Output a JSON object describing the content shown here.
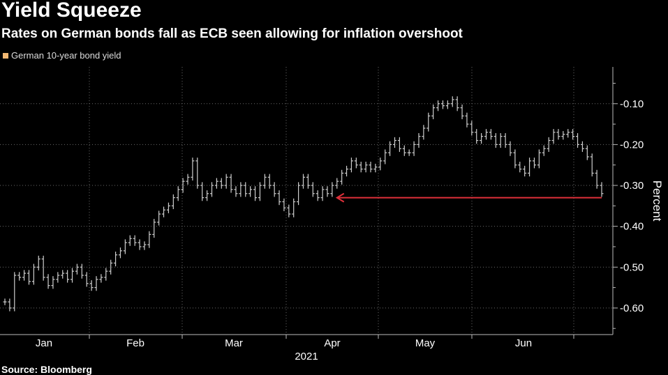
{
  "title": "Yield Squeeze",
  "subtitle": "Rates on German bonds fall as ECB seen allowing for inflation overshoot",
  "source": "Source: Bloomberg",
  "colors": {
    "background": "#000000",
    "bars": "#cfcfcf",
    "legend_swatch": "#f2b872",
    "arrow": "#e0303a",
    "grid": "#6a6a6a"
  },
  "chart_data": {
    "type": "bar",
    "subtype": "ohlc",
    "title": "Yield Squeeze",
    "subtitle": "Rates on German bonds fall as ECB seen allowing for inflation overshoot",
    "ylabel": "Percent",
    "xlabel": "2021",
    "y_axis_side": "right",
    "ylim": [
      -0.665,
      -0.01
    ],
    "yticks": [
      -0.1,
      -0.2,
      -0.3,
      -0.4,
      -0.5,
      -0.6
    ],
    "ytick_labels": [
      "-0.10",
      "-0.20",
      "-0.30",
      "-0.40",
      "-0.50",
      "-0.60"
    ],
    "x_month_labels": [
      "Jan",
      "Feb",
      "Mar",
      "Apr",
      "May",
      "Jun"
    ],
    "x_year_label": "2021",
    "legend": {
      "position": "top-left",
      "entries": [
        "German 10-year bond yield"
      ]
    },
    "grid": true,
    "series": [
      {
        "name": "German 10-year bond yield",
        "values": [
          -0.585,
          -0.6,
          -0.52,
          -0.525,
          -0.515,
          -0.535,
          -0.5,
          -0.48,
          -0.525,
          -0.545,
          -0.53,
          -0.52,
          -0.515,
          -0.53,
          -0.51,
          -0.5,
          -0.52,
          -0.54,
          -0.55,
          -0.53,
          -0.525,
          -0.51,
          -0.49,
          -0.47,
          -0.46,
          -0.44,
          -0.43,
          -0.44,
          -0.45,
          -0.445,
          -0.42,
          -0.39,
          -0.37,
          -0.36,
          -0.35,
          -0.33,
          -0.31,
          -0.29,
          -0.28,
          -0.24,
          -0.3,
          -0.33,
          -0.32,
          -0.3,
          -0.29,
          -0.3,
          -0.28,
          -0.31,
          -0.32,
          -0.3,
          -0.32,
          -0.31,
          -0.33,
          -0.3,
          -0.28,
          -0.3,
          -0.32,
          -0.34,
          -0.355,
          -0.37,
          -0.34,
          -0.3,
          -0.28,
          -0.3,
          -0.32,
          -0.33,
          -0.31,
          -0.32,
          -0.3,
          -0.29,
          -0.27,
          -0.26,
          -0.24,
          -0.25,
          -0.26,
          -0.25,
          -0.26,
          -0.255,
          -0.24,
          -0.22,
          -0.2,
          -0.19,
          -0.21,
          -0.22,
          -0.22,
          -0.2,
          -0.18,
          -0.16,
          -0.13,
          -0.11,
          -0.1,
          -0.105,
          -0.1,
          -0.09,
          -0.11,
          -0.13,
          -0.15,
          -0.17,
          -0.19,
          -0.18,
          -0.17,
          -0.18,
          -0.2,
          -0.18,
          -0.2,
          -0.22,
          -0.25,
          -0.26,
          -0.27,
          -0.24,
          -0.25,
          -0.22,
          -0.21,
          -0.19,
          -0.17,
          -0.18,
          -0.175,
          -0.17,
          -0.18,
          -0.2,
          -0.21,
          -0.23,
          -0.27,
          -0.3,
          -0.32
        ]
      }
    ],
    "annotations": [
      {
        "type": "arrow",
        "direction": "left",
        "y": -0.33,
        "from_index": 124,
        "to_index": 69
      }
    ]
  }
}
